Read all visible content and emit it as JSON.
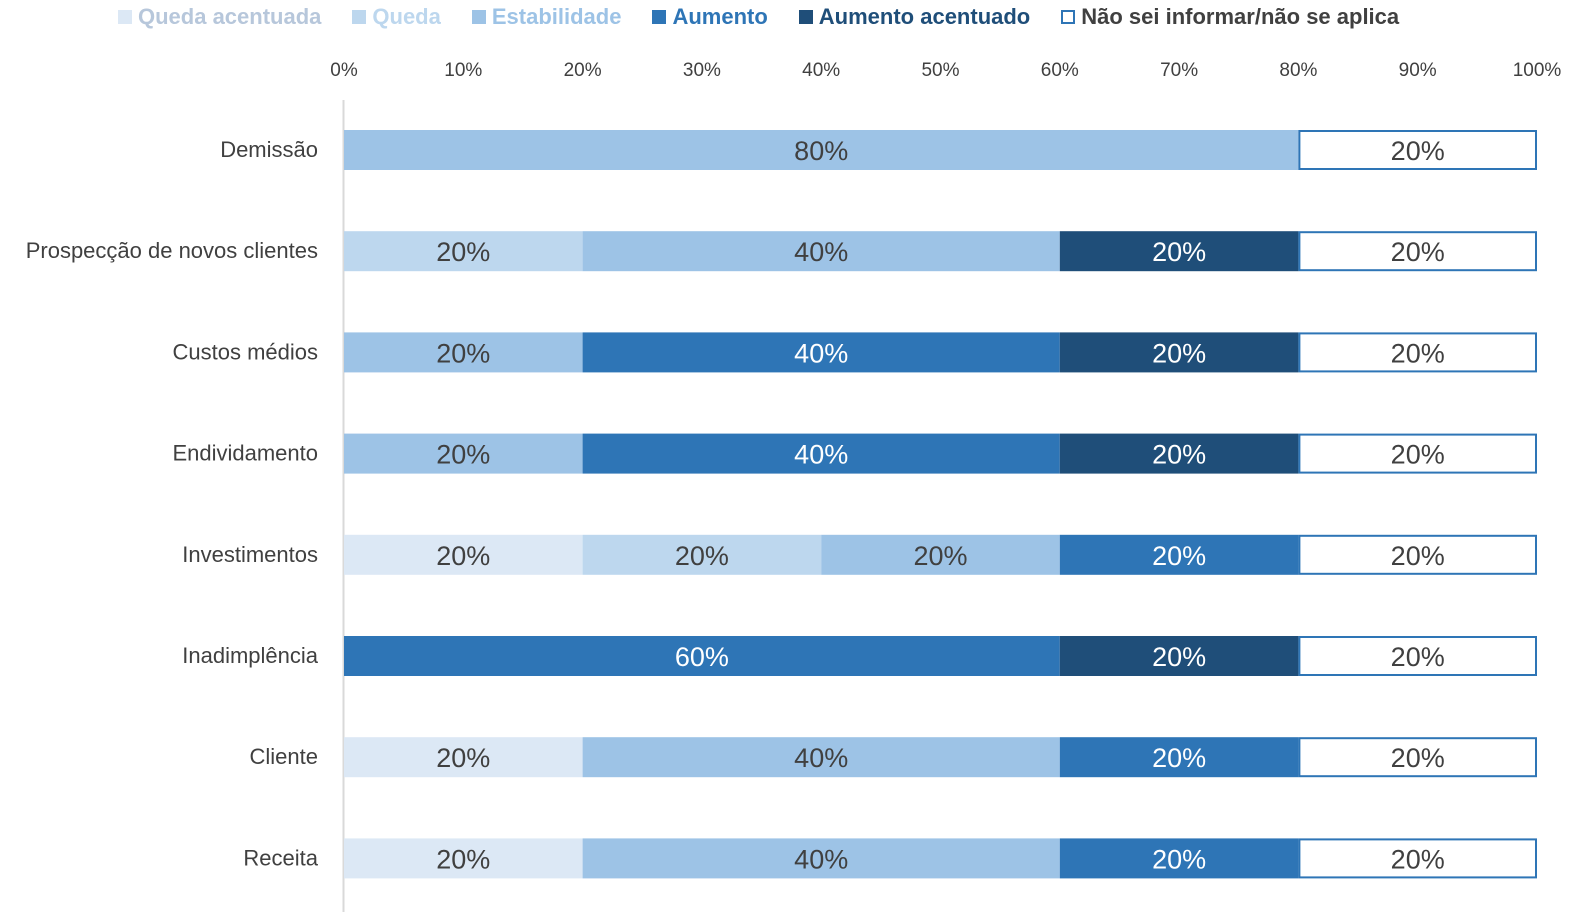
{
  "chart_data": {
    "type": "bar",
    "orientation": "horizontal",
    "stacked": true,
    "title": "",
    "xlabel": "",
    "ylabel": "",
    "xlim": [
      0,
      100
    ],
    "x_axis_position": "top",
    "legend_position": "top",
    "grid": false,
    "tick_labels": [
      "0%",
      "10%",
      "20%",
      "30%",
      "40%",
      "50%",
      "60%",
      "70%",
      "80%",
      "90%",
      "100%"
    ],
    "categories": [
      "Demissão",
      "Prospecção de novos clientes",
      "Custos médios",
      "Endividamento",
      "Investimentos",
      "Inadimplência",
      "Cliente",
      "Receita"
    ],
    "series": [
      {
        "name": "Queda acentuada",
        "color": "#dce8f5",
        "legend_text_color": "#b7c7db",
        "label_color": "#404040",
        "values": [
          0,
          0,
          0,
          0,
          20,
          0,
          20,
          20
        ]
      },
      {
        "name": "Queda",
        "color": "#bdd7ee",
        "legend_text_color": "#bdd7ee",
        "label_color": "#404040",
        "values": [
          0,
          20,
          0,
          0,
          20,
          0,
          0,
          0
        ]
      },
      {
        "name": "Estabilidade",
        "color": "#9dc3e6",
        "legend_text_color": "#9dc3e6",
        "label_color": "#404040",
        "values": [
          80,
          40,
          20,
          20,
          20,
          0,
          40,
          40
        ]
      },
      {
        "name": "Aumento",
        "color": "#2e75b6",
        "legend_text_color": "#2e75b6",
        "label_color": "#ffffff",
        "values": [
          0,
          0,
          40,
          40,
          20,
          60,
          20,
          20
        ]
      },
      {
        "name": "Aumento acentuado",
        "color": "#1f4e79",
        "legend_text_color": "#1f4e79",
        "label_color": "#ffffff",
        "values": [
          0,
          20,
          20,
          20,
          0,
          20,
          0,
          0
        ]
      },
      {
        "name": "Não sei informar/não se aplica",
        "color": "#ffffff",
        "border_color": "#2e75b6",
        "legend_text_color": "#404040",
        "label_color": "#404040",
        "values": [
          20,
          20,
          20,
          20,
          20,
          20,
          20,
          20
        ]
      }
    ]
  }
}
